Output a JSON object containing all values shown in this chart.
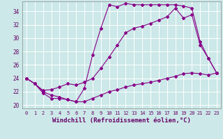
{
  "xlabel": "Windchill (Refroidissement éolien,°C)",
  "bg_color": "#cce8e8",
  "line_color": "#880088",
  "grid_color": "#ffffff",
  "xlim": [
    -0.5,
    23.5
  ],
  "ylim": [
    19.5,
    35.5
  ],
  "xticks": [
    0,
    1,
    2,
    3,
    4,
    5,
    6,
    7,
    8,
    9,
    10,
    11,
    12,
    13,
    14,
    15,
    16,
    17,
    18,
    19,
    20,
    21,
    22,
    23
  ],
  "yticks": [
    20,
    22,
    24,
    26,
    28,
    30,
    32,
    34
  ],
  "line1_x": [
    0,
    1,
    2,
    3,
    4,
    5,
    6,
    7,
    8,
    9,
    10,
    11,
    12,
    13,
    14,
    15,
    16,
    17,
    18,
    19,
    20,
    21,
    22,
    23
  ],
  "line1_y": [
    24.0,
    23.2,
    22.2,
    22.3,
    22.7,
    23.2,
    23.0,
    23.4,
    24.0,
    25.5,
    27.2,
    29.0,
    30.8,
    31.5,
    31.8,
    32.2,
    32.7,
    33.2,
    34.5,
    33.0,
    33.5,
    29.0,
    27.0,
    24.8
  ],
  "line2_x": [
    0,
    1,
    2,
    3,
    4,
    5,
    6,
    7,
    8,
    9,
    10,
    11,
    12,
    13,
    14,
    15,
    16,
    17,
    18,
    19,
    20,
    21,
    22,
    23
  ],
  "line2_y": [
    24.0,
    23.2,
    21.8,
    21.0,
    21.0,
    20.8,
    20.5,
    22.5,
    27.5,
    31.5,
    35.0,
    34.7,
    35.2,
    35.0,
    35.0,
    35.0,
    35.0,
    35.0,
    35.0,
    34.8,
    34.5,
    29.5,
    27.0,
    24.8
  ],
  "line3_x": [
    0,
    1,
    2,
    3,
    4,
    5,
    6,
    7,
    8,
    9,
    10,
    11,
    12,
    13,
    14,
    15,
    16,
    17,
    18,
    19,
    20,
    21,
    22,
    23
  ],
  "line3_y": [
    24.0,
    23.2,
    22.0,
    21.5,
    21.2,
    20.8,
    20.5,
    20.5,
    21.0,
    21.5,
    22.0,
    22.3,
    22.7,
    23.0,
    23.2,
    23.4,
    23.7,
    24.0,
    24.3,
    24.7,
    24.8,
    24.7,
    24.5,
    24.8
  ]
}
